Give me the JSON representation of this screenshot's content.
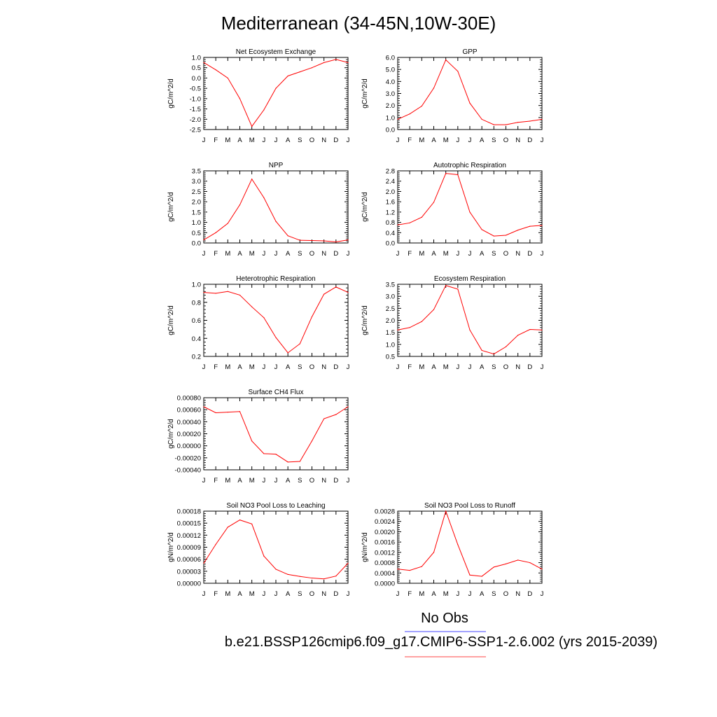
{
  "title": "Mediterranean (34-45N,10W-30E)",
  "legend": {
    "no_obs": "No Obs",
    "case": "b.e21.BSSP126cmip6.f09_g17.CMIP6-SSP1-2.6.002 (yrs 2015-2039)",
    "obs_color": "#6b6bff",
    "case_color": "#ff6b6b"
  },
  "colors": {
    "line": "#ff0000",
    "axis": "#000000"
  },
  "month_labels": [
    "J",
    "F",
    "M",
    "A",
    "M",
    "J",
    "J",
    "A",
    "S",
    "O",
    "N",
    "D",
    "J"
  ],
  "chart_data": [
    {
      "type": "line",
      "title": "Net Ecosystem Exchange",
      "ylabel": "gC/m^2/d",
      "ylim": [
        -2.5,
        1.0
      ],
      "yticks": [
        "1.0",
        "0.5",
        "0.0",
        "-0.5",
        "-1.0",
        "-1.5",
        "-2.0",
        "-2.5"
      ],
      "x": [
        "J",
        "F",
        "M",
        "A",
        "M",
        "J",
        "J",
        "A",
        "S",
        "O",
        "N",
        "D",
        "J"
      ],
      "values": [
        0.75,
        0.4,
        0.0,
        -1.0,
        -2.35,
        -1.55,
        -0.5,
        0.1,
        0.3,
        0.5,
        0.75,
        0.9,
        0.75
      ]
    },
    {
      "type": "line",
      "title": "GPP",
      "ylabel": "gC/m^2/d",
      "ylim": [
        0.0,
        6.0
      ],
      "yticks": [
        "6.0",
        "5.0",
        "4.0",
        "3.0",
        "2.0",
        "1.0",
        "0.0"
      ],
      "x": [
        "J",
        "F",
        "M",
        "A",
        "M",
        "J",
        "J",
        "A",
        "S",
        "O",
        "N",
        "D",
        "J"
      ],
      "values": [
        0.85,
        1.3,
        1.95,
        3.45,
        5.8,
        4.85,
        2.2,
        0.85,
        0.4,
        0.4,
        0.6,
        0.7,
        0.85
      ]
    },
    {
      "type": "line",
      "title": "NPP",
      "ylabel": "gC/m^2/d",
      "ylim": [
        0.0,
        3.5
      ],
      "yticks": [
        "3.5",
        "3.0",
        "2.5",
        "2.0",
        "1.5",
        "1.0",
        "0.5",
        "0.0"
      ],
      "x": [
        "J",
        "F",
        "M",
        "A",
        "M",
        "J",
        "J",
        "A",
        "S",
        "O",
        "N",
        "D",
        "J"
      ],
      "values": [
        0.15,
        0.5,
        0.95,
        1.85,
        3.1,
        2.2,
        1.05,
        0.35,
        0.13,
        0.12,
        0.1,
        0.05,
        0.15
      ]
    },
    {
      "type": "line",
      "title": "Autotrophic Respiration",
      "ylabel": "gC/m^2/d",
      "ylim": [
        0.0,
        2.8
      ],
      "yticks": [
        "2.8",
        "2.4",
        "2.0",
        "1.6",
        "1.2",
        "0.8",
        "0.4",
        "0.0"
      ],
      "x": [
        "J",
        "F",
        "M",
        "A",
        "M",
        "J",
        "J",
        "A",
        "S",
        "O",
        "N",
        "D",
        "J"
      ],
      "values": [
        0.7,
        0.78,
        1.0,
        1.58,
        2.7,
        2.65,
        1.2,
        0.52,
        0.27,
        0.3,
        0.5,
        0.65,
        0.68
      ]
    },
    {
      "type": "line",
      "title": "Heterotrophic Respiration",
      "ylabel": "gC/m^2/d",
      "ylim": [
        0.2,
        1.0
      ],
      "yticks": [
        "1.0",
        "0.8",
        "0.6",
        "0.4",
        "0.2"
      ],
      "x": [
        "J",
        "F",
        "M",
        "A",
        "M",
        "J",
        "J",
        "A",
        "S",
        "O",
        "N",
        "D",
        "J"
      ],
      "values": [
        0.91,
        0.9,
        0.92,
        0.88,
        0.75,
        0.63,
        0.41,
        0.24,
        0.34,
        0.64,
        0.89,
        0.97,
        0.91
      ]
    },
    {
      "type": "line",
      "title": "Ecosystem Respiration",
      "ylabel": "gC/m^2/d",
      "ylim": [
        0.5,
        3.5
      ],
      "yticks": [
        "3.5",
        "3.0",
        "2.5",
        "2.0",
        "1.5",
        "1.0",
        "0.5"
      ],
      "x": [
        "J",
        "F",
        "M",
        "A",
        "M",
        "J",
        "J",
        "A",
        "S",
        "O",
        "N",
        "D",
        "J"
      ],
      "values": [
        1.6,
        1.7,
        1.95,
        2.45,
        3.45,
        3.3,
        1.6,
        0.75,
        0.6,
        0.9,
        1.38,
        1.62,
        1.6
      ]
    },
    {
      "type": "line",
      "title": "Surface CH4 Flux",
      "ylabel": "gC/m^2/d",
      "ylim": [
        -0.0004,
        0.0008
      ],
      "yticks": [
        "0.00080",
        "0.00060",
        "0.00040",
        "0.00020",
        "0.00000",
        "-0.00020",
        "-0.00040"
      ],
      "x": [
        "J",
        "F",
        "M",
        "A",
        "M",
        "J",
        "J",
        "A",
        "S",
        "O",
        "N",
        "D",
        "J"
      ],
      "values": [
        0.00065,
        0.00055,
        0.00056,
        0.00057,
        8e-05,
        -0.00013,
        -0.00014,
        -0.00027,
        -0.00026,
        8e-05,
        0.00045,
        0.00052,
        0.00065
      ]
    },
    {
      "type": "line",
      "title": "Soil NO3 Pool Loss to Leaching",
      "ylabel": "gN/m^2/d",
      "ylim": [
        0.0,
        0.00018
      ],
      "yticks": [
        "0.00018",
        "0.00015",
        "0.00012",
        "0.00009",
        "0.00006",
        "0.00003",
        "0.00000"
      ],
      "x": [
        "J",
        "F",
        "M",
        "A",
        "M",
        "J",
        "J",
        "A",
        "S",
        "O",
        "N",
        "D",
        "J"
      ],
      "values": [
        5e-05,
        9.7e-05,
        0.00014,
        0.000158,
        0.000148,
        6.8e-05,
        3.5e-05,
        2.2e-05,
        1.7e-05,
        1.3e-05,
        1.1e-05,
        1.8e-05,
        5e-05
      ]
    },
    {
      "type": "line",
      "title": "Soil NO3 Pool Loss to Runoff",
      "ylabel": "gN/m^2/d",
      "ylim": [
        0.0,
        0.0028
      ],
      "yticks": [
        "0.0028",
        "0.0024",
        "0.0020",
        "0.0016",
        "0.0012",
        "0.0008",
        "0.0004",
        "0.0000"
      ],
      "x": [
        "J",
        "F",
        "M",
        "A",
        "M",
        "J",
        "J",
        "A",
        "S",
        "O",
        "N",
        "D",
        "J"
      ],
      "values": [
        0.00055,
        0.0005,
        0.00065,
        0.0012,
        0.0028,
        0.0015,
        0.00032,
        0.00027,
        0.00063,
        0.00075,
        0.0009,
        0.0008,
        0.00055
      ]
    }
  ]
}
